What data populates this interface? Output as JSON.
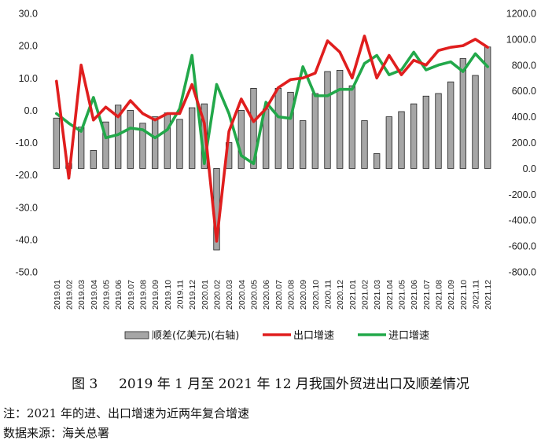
{
  "caption": {
    "figure_no": "图 3",
    "title": "2019 年 1 月至 2021 年 12 月我国外贸进出口及顺差情况"
  },
  "notes": {
    "line1": "注：2021 年的进、出口增速为近两年复合增速",
    "line2": "数据来源：海关总署"
  },
  "colors": {
    "bar_fill": "#a6a6a6",
    "bar_stroke": "#222222",
    "export_line": "#e01e1e",
    "import_line": "#22a84a"
  },
  "chart_data": {
    "type": "bar+line",
    "categories": [
      "2019.01",
      "2019.02",
      "2019.03",
      "2019.04",
      "2019.05",
      "2019.06",
      "2019.07",
      "2019.08",
      "2019.09",
      "2019.10",
      "2019.11",
      "2019.12",
      "2020.01",
      "2020.02",
      "2020.03",
      "2020.04",
      "2020.05",
      "2020.06",
      "2020.07",
      "2020.08",
      "2020.09",
      "2020.10",
      "2020.11",
      "2020.12",
      "2021.01",
      "2021.02",
      "2021.03",
      "2021.04",
      "2021.05",
      "2021.06",
      "2021.07",
      "2021.08",
      "2021.09",
      "2021.10",
      "2021.11",
      "2021.12"
    ],
    "left_axis": {
      "ylim": [
        -50,
        30
      ],
      "ticks": [
        "30.0",
        "20.0",
        "10.0",
        "0.0",
        "-10.0",
        "-20.0",
        "-30.0",
        "-40.0",
        "-50.0"
      ]
    },
    "right_axis": {
      "ylim": [
        -800,
        1200
      ],
      "ticks": [
        "1200.0",
        "1000.0",
        "800.0",
        "600.0",
        "400.0",
        "200.0",
        "0.0",
        "-200.0",
        "-400.0",
        "-600.0",
        "-800.0"
      ]
    },
    "series": [
      {
        "name": "顺差(亿美元)(右轴)",
        "type": "bar",
        "axis": "right",
        "values": [
          390,
          40,
          320,
          140,
          360,
          490,
          450,
          350,
          400,
          430,
          380,
          470,
          500,
          -630,
          200,
          450,
          620,
          460,
          620,
          590,
          370,
          580,
          750,
          760,
          640,
          370,
          115,
          400,
          440,
          500,
          560,
          580,
          670,
          850,
          720,
          940
        ]
      },
      {
        "name": "出口增速",
        "type": "line",
        "axis": "left",
        "values": [
          9.0,
          -21.0,
          14.0,
          -3.0,
          1.0,
          -2.0,
          3.0,
          -1.0,
          -3.0,
          -1.0,
          -1.0,
          8.0,
          -4.0,
          -40.5,
          -6.5,
          3.5,
          -3.5,
          0.5,
          7.0,
          9.5,
          10.0,
          11.5,
          21.5,
          18.0,
          10.0,
          23.0,
          10.0,
          17.0,
          11.0,
          15.5,
          14.0,
          18.5,
          19.5,
          20.0,
          22.0,
          19.5
        ]
      },
      {
        "name": "进口增速",
        "type": "line",
        "axis": "left",
        "values": [
          -1.0,
          -4.0,
          -6.5,
          4.0,
          -8.5,
          -7.5,
          -5.5,
          -6.0,
          -8.5,
          -6.0,
          0.5,
          17.0,
          -16.5,
          8.0,
          -1.0,
          -14.0,
          -16.5,
          2.5,
          -2.0,
          -2.5,
          13.5,
          4.5,
          4.5,
          6.5,
          6.5,
          14.5,
          17.0,
          11.0,
          12.5,
          18.0,
          12.5,
          14.0,
          15.0,
          12.0,
          17.5,
          13.5
        ]
      }
    ],
    "legend": {
      "position": "bottom",
      "entries": [
        "顺差(亿美元)(右轴)",
        "出口增速",
        "进口增速"
      ]
    },
    "grid": false
  }
}
